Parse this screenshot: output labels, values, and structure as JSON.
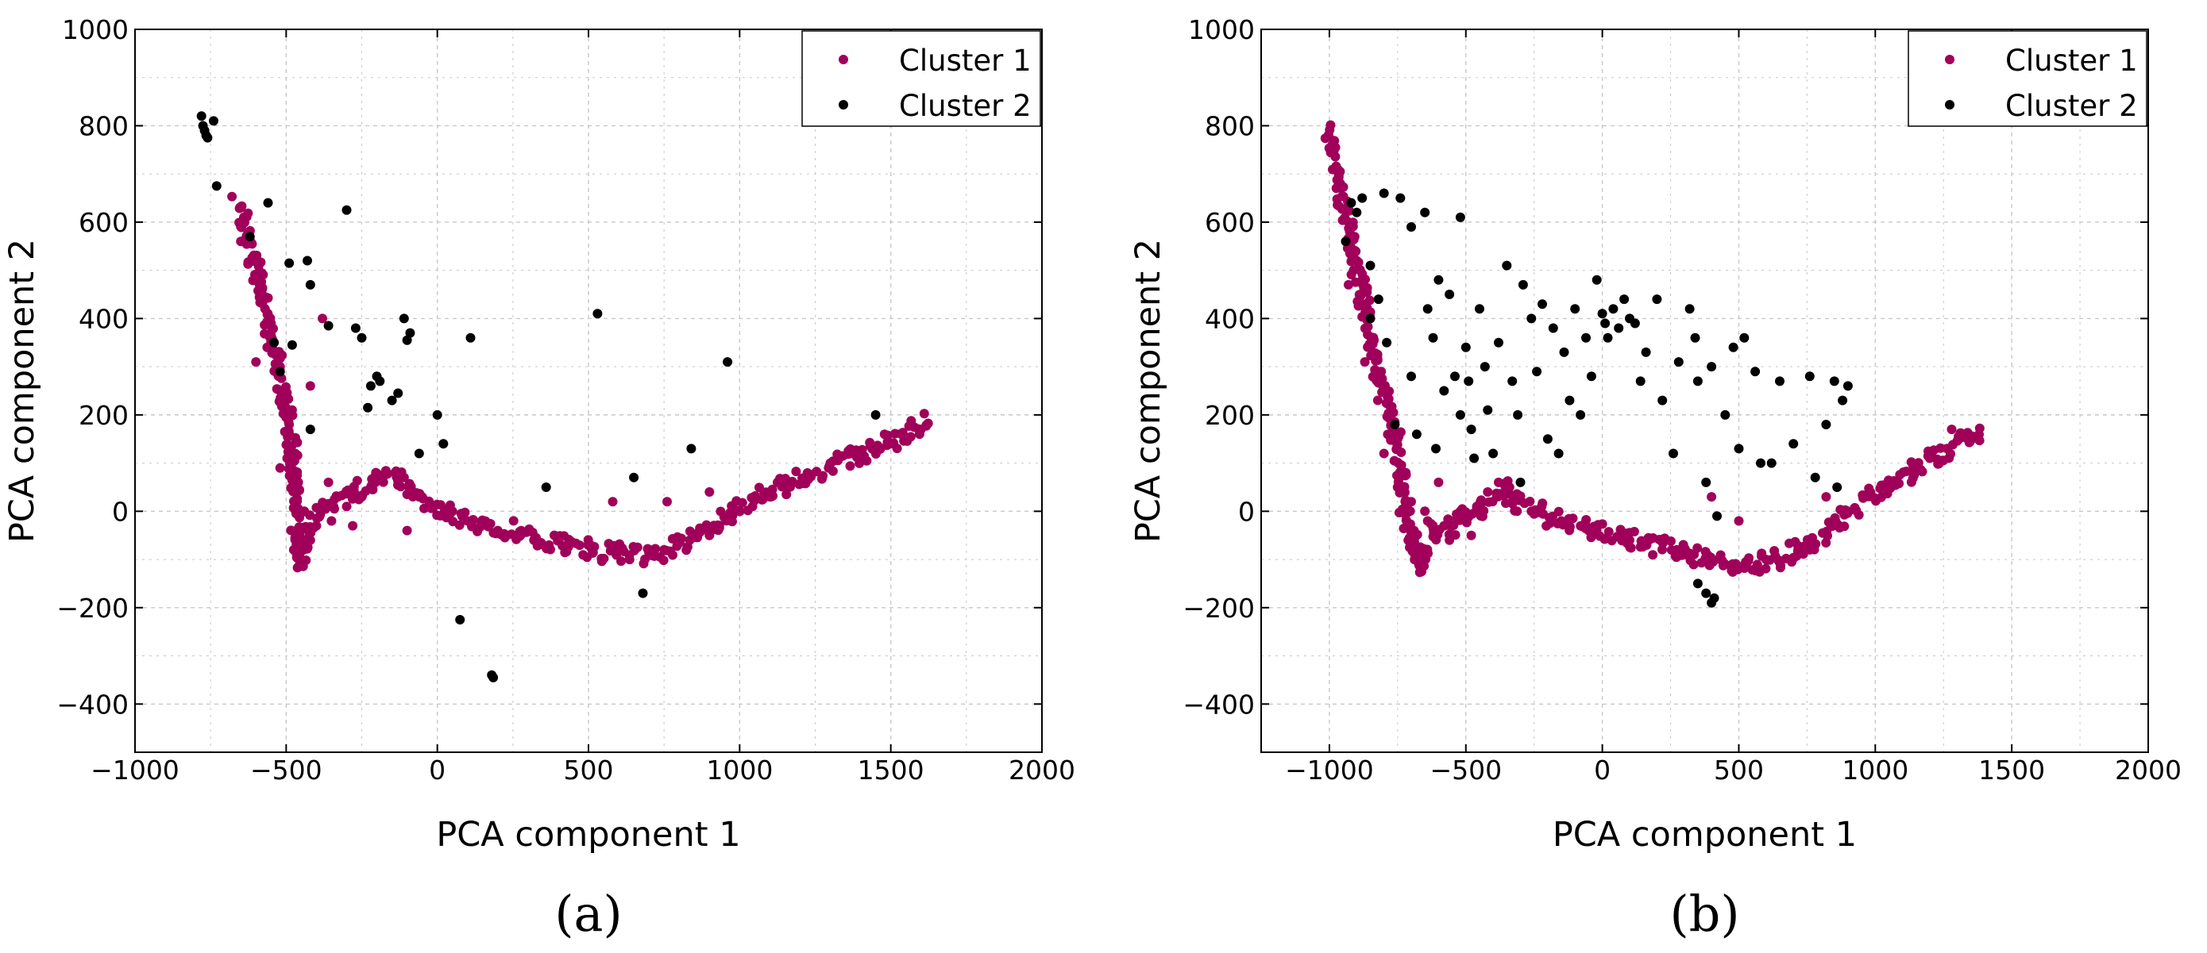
{
  "colors": {
    "cluster1": "#a0005a",
    "cluster2": "#000000",
    "grid": "#c8c8c8",
    "axis": "#000000"
  },
  "chart_data": [
    {
      "type": "scatter",
      "caption": "(a)",
      "xlabel": "PCA component 1",
      "ylabel": "PCA component 2",
      "xlim": [
        -1000,
        2000
      ],
      "ylim": [
        -500,
        1000
      ],
      "xticks": [
        -1000,
        -500,
        0,
        500,
        1000,
        1500,
        2000
      ],
      "yticks": [
        -400,
        -200,
        0,
        200,
        400,
        600,
        800,
        1000
      ],
      "grid": true,
      "legend_position": "top-right",
      "series": [
        {
          "name": "Cluster 1",
          "color": "#a0005a",
          "path": [
            [
              -660,
              640
            ],
            [
              -600,
              500
            ],
            [
              -540,
              330
            ],
            [
              -480,
              120
            ],
            [
              -450,
              -110
            ],
            [
              -420,
              -20
            ],
            [
              -330,
              20
            ],
            [
              -200,
              60
            ],
            [
              -150,
              80
            ],
            [
              -80,
              40
            ],
            [
              0,
              0
            ],
            [
              150,
              -30
            ],
            [
              300,
              -50
            ],
            [
              500,
              -80
            ],
            [
              700,
              -90
            ],
            [
              850,
              -60
            ],
            [
              1000,
              10
            ],
            [
              1200,
              70
            ],
            [
              1400,
              120
            ],
            [
              1630,
              180
            ]
          ],
          "points": [
            [
              -640,
              610
            ],
            [
              -620,
              570
            ],
            [
              -590,
              480
            ],
            [
              -570,
              420
            ],
            [
              -550,
              390
            ],
            [
              -520,
              300
            ],
            [
              -500,
              240
            ],
            [
              -490,
              180
            ],
            [
              -470,
              120
            ],
            [
              -460,
              60
            ],
            [
              -440,
              0
            ],
            [
              -420,
              -60
            ],
            [
              -400,
              -30
            ],
            [
              -350,
              -20
            ],
            [
              -300,
              10
            ],
            [
              -250,
              30
            ],
            [
              -220,
              50
            ],
            [
              -180,
              70
            ],
            [
              -140,
              80
            ],
            [
              -110,
              70
            ],
            [
              -60,
              30
            ],
            [
              50,
              0
            ],
            [
              100,
              -20
            ],
            [
              200,
              -40
            ],
            [
              400,
              -60
            ],
            [
              600,
              -80
            ],
            [
              750,
              -80
            ],
            [
              900,
              -50
            ],
            [
              1100,
              30
            ],
            [
              1300,
              100
            ],
            [
              1500,
              140
            ],
            [
              1600,
              170
            ],
            [
              -380,
              400
            ],
            [
              -420,
              260
            ],
            [
              -480,
              210
            ],
            [
              -360,
              60
            ],
            [
              -100,
              -40
            ],
            [
              760,
              20
            ],
            [
              580,
              20
            ],
            [
              -280,
              -30
            ],
            [
              -520,
              90
            ],
            [
              -600,
              310
            ],
            [
              -650,
              560
            ],
            [
              900,
              40
            ]
          ]
        },
        {
          "name": "Cluster 2",
          "color": "#000000",
          "points": [
            [
              -780,
              820
            ],
            [
              -775,
              800
            ],
            [
              -770,
              790
            ],
            [
              -765,
              780
            ],
            [
              -760,
              775
            ],
            [
              -740,
              810
            ],
            [
              -730,
              675
            ],
            [
              -620,
              570
            ],
            [
              -560,
              640
            ],
            [
              -540,
              350
            ],
            [
              -520,
              290
            ],
            [
              -490,
              515
            ],
            [
              -480,
              345
            ],
            [
              -430,
              520
            ],
            [
              -420,
              470
            ],
            [
              -420,
              170
            ],
            [
              -360,
              385
            ],
            [
              -300,
              625
            ],
            [
              -270,
              380
            ],
            [
              -250,
              360
            ],
            [
              -230,
              215
            ],
            [
              -220,
              260
            ],
            [
              -200,
              280
            ],
            [
              -190,
              270
            ],
            [
              -150,
              230
            ],
            [
              -130,
              245
            ],
            [
              -110,
              400
            ],
            [
              -100,
              355
            ],
            [
              -90,
              370
            ],
            [
              -60,
              120
            ],
            [
              0,
              200
            ],
            [
              20,
              140
            ],
            [
              75,
              -225
            ],
            [
              110,
              360
            ],
            [
              180,
              -340
            ],
            [
              185,
              -345
            ],
            [
              360,
              50
            ],
            [
              530,
              410
            ],
            [
              650,
              70
            ],
            [
              680,
              -170
            ],
            [
              840,
              130
            ],
            [
              960,
              310
            ],
            [
              1450,
              200
            ]
          ]
        }
      ]
    },
    {
      "type": "scatter",
      "caption": "(b)",
      "xlabel": "PCA component 1",
      "ylabel": "PCA component 2",
      "xlim": [
        -1250,
        2000
      ],
      "ylim": [
        -500,
        1000
      ],
      "xticks": [
        -1000,
        -500,
        0,
        500,
        1000,
        1500,
        2000
      ],
      "yticks": [
        -400,
        -200,
        0,
        200,
        400,
        600,
        800,
        1000
      ],
      "grid": true,
      "legend_position": "top-right",
      "series": [
        {
          "name": "Cluster 1",
          "color": "#a0005a",
          "path": [
            [
              -1000,
              790
            ],
            [
              -920,
              560
            ],
            [
              -840,
              340
            ],
            [
              -760,
              150
            ],
            [
              -700,
              -50
            ],
            [
              -670,
              -120
            ],
            [
              -620,
              -40
            ],
            [
              -500,
              -10
            ],
            [
              -400,
              20
            ],
            [
              -350,
              50
            ],
            [
              -300,
              20
            ],
            [
              -200,
              -10
            ],
            [
              0,
              -40
            ],
            [
              200,
              -70
            ],
            [
              400,
              -100
            ],
            [
              550,
              -110
            ],
            [
              700,
              -90
            ],
            [
              850,
              -30
            ],
            [
              1000,
              40
            ],
            [
              1150,
              90
            ],
            [
              1300,
              140
            ],
            [
              1400,
              160
            ]
          ],
          "points": [
            [
              -990,
              760
            ],
            [
              -960,
              680
            ],
            [
              -930,
              600
            ],
            [
              -900,
              520
            ],
            [
              -870,
              430
            ],
            [
              -840,
              360
            ],
            [
              -810,
              290
            ],
            [
              -780,
              220
            ],
            [
              -750,
              150
            ],
            [
              -720,
              80
            ],
            [
              -700,
              20
            ],
            [
              -690,
              -40
            ],
            [
              -670,
              -100
            ],
            [
              -640,
              -20
            ],
            [
              -580,
              -30
            ],
            [
              -520,
              0
            ],
            [
              -460,
              10
            ],
            [
              -420,
              40
            ],
            [
              -380,
              60
            ],
            [
              -340,
              50
            ],
            [
              -260,
              0
            ],
            [
              -150,
              -20
            ],
            [
              -50,
              -40
            ],
            [
              100,
              -60
            ],
            [
              300,
              -90
            ],
            [
              450,
              -110
            ],
            [
              600,
              -100
            ],
            [
              750,
              -70
            ],
            [
              900,
              0
            ],
            [
              1050,
              60
            ],
            [
              1200,
              110
            ],
            [
              1350,
              150
            ],
            [
              -750,
              50
            ],
            [
              -600,
              60
            ],
            [
              -650,
              0
            ],
            [
              -560,
              -60
            ],
            [
              -480,
              -50
            ],
            [
              400,
              30
            ],
            [
              500,
              -20
            ],
            [
              820,
              30
            ],
            [
              1280,
              170
            ],
            [
              -800,
              120
            ],
            [
              -870,
              310
            ],
            [
              -930,
              470
            ]
          ]
        },
        {
          "name": "Cluster 2",
          "color": "#000000",
          "points": [
            [
              -940,
              560
            ],
            [
              -920,
              640
            ],
            [
              -880,
              650
            ],
            [
              -850,
              400
            ],
            [
              -820,
              440
            ],
            [
              -800,
              660
            ],
            [
              -790,
              350
            ],
            [
              -740,
              650
            ],
            [
              -700,
              590
            ],
            [
              -700,
              280
            ],
            [
              -680,
              160
            ],
            [
              -650,
              620
            ],
            [
              -640,
              420
            ],
            [
              -620,
              360
            ],
            [
              -600,
              480
            ],
            [
              -580,
              250
            ],
            [
              -560,
              450
            ],
            [
              -540,
              280
            ],
            [
              -520,
              200
            ],
            [
              -520,
              610
            ],
            [
              -500,
              340
            ],
            [
              -490,
              270
            ],
            [
              -480,
              170
            ],
            [
              -470,
              110
            ],
            [
              -450,
              420
            ],
            [
              -430,
              300
            ],
            [
              -420,
              210
            ],
            [
              -400,
              120
            ],
            [
              -380,
              350
            ],
            [
              -350,
              510
            ],
            [
              -330,
              270
            ],
            [
              -310,
              200
            ],
            [
              -290,
              470
            ],
            [
              -260,
              400
            ],
            [
              -240,
              290
            ],
            [
              -220,
              430
            ],
            [
              -200,
              150
            ],
            [
              -180,
              380
            ],
            [
              -160,
              120
            ],
            [
              -140,
              330
            ],
            [
              -120,
              230
            ],
            [
              -100,
              420
            ],
            [
              -80,
              200
            ],
            [
              -60,
              360
            ],
            [
              -40,
              280
            ],
            [
              -20,
              480
            ],
            [
              0,
              410
            ],
            [
              10,
              390
            ],
            [
              20,
              360
            ],
            [
              40,
              420
            ],
            [
              60,
              380
            ],
            [
              80,
              440
            ],
            [
              100,
              400
            ],
            [
              120,
              390
            ],
            [
              140,
              270
            ],
            [
              160,
              330
            ],
            [
              200,
              440
            ],
            [
              220,
              230
            ],
            [
              260,
              120
            ],
            [
              280,
              310
            ],
            [
              320,
              420
            ],
            [
              340,
              360
            ],
            [
              350,
              270
            ],
            [
              380,
              60
            ],
            [
              400,
              300
            ],
            [
              400,
              -190
            ],
            [
              420,
              -10
            ],
            [
              450,
              200
            ],
            [
              480,
              340
            ],
            [
              500,
              130
            ],
            [
              520,
              360
            ],
            [
              560,
              290
            ],
            [
              580,
              100
            ],
            [
              620,
              100
            ],
            [
              650,
              270
            ],
            [
              700,
              140
            ],
            [
              760,
              280
            ],
            [
              780,
              70
            ],
            [
              820,
              180
            ],
            [
              850,
              270
            ],
            [
              880,
              230
            ],
            [
              860,
              50
            ],
            [
              900,
              260
            ],
            [
              -850,
              510
            ],
            [
              -900,
              620
            ],
            [
              -760,
              180
            ],
            [
              -610,
              130
            ],
            [
              -300,
              60
            ],
            [
              350,
              -150
            ],
            [
              380,
              -170
            ],
            [
              410,
              -180
            ]
          ]
        }
      ]
    }
  ]
}
